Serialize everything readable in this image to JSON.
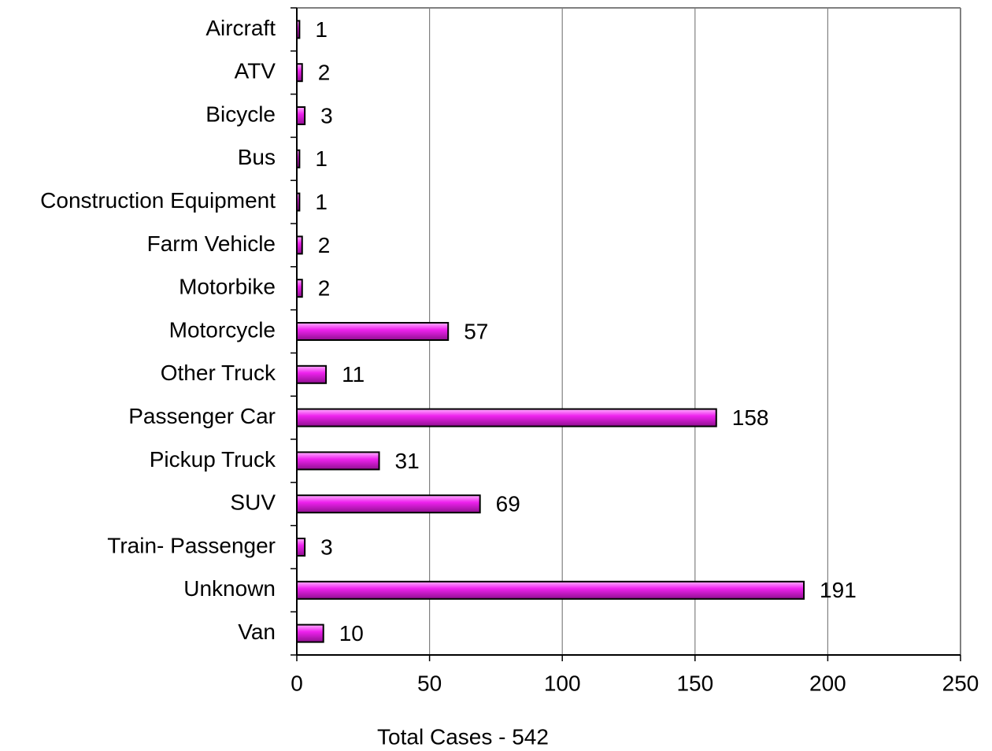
{
  "chart_data": {
    "type": "bar",
    "orientation": "horizontal",
    "x_label": "Total Cases - 542",
    "categories": [
      "Aircraft",
      "ATV",
      "Bicycle",
      "Bus",
      "Construction Equipment",
      "Farm Vehicle",
      "Motorbike",
      "Motorcycle",
      "Other Truck",
      "Passenger Car",
      "Pickup Truck",
      "SUV",
      "Train- Passenger",
      "Unknown",
      "Van"
    ],
    "values": [
      1,
      2,
      3,
      1,
      1,
      2,
      2,
      57,
      11,
      158,
      31,
      69,
      3,
      191,
      10
    ],
    "color": "#ee22ee",
    "xlim": [
      0,
      250
    ],
    "xticks": [
      0,
      50,
      100,
      150,
      200,
      250
    ],
    "grid": true
  }
}
